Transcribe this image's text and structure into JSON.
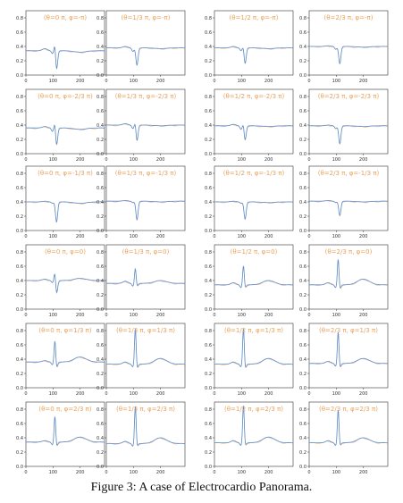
{
  "caption": "Figure 3: A case of Electrocardio Panorama.",
  "colors": {
    "signal": "#5b8fd4",
    "signal_overlay": "#e7a86a",
    "title": "#e8a25c",
    "axes": "#333333"
  },
  "chart_data": {
    "type": "line",
    "rows": 6,
    "cols": 4,
    "xlim": [
      0,
      290
    ],
    "x_ticks": [
      0,
      100,
      200
    ],
    "ylim": [
      0,
      0.9
    ],
    "y_ticks": [
      0.0,
      0.2,
      0.4,
      0.6,
      0.8
    ],
    "panels": [
      {
        "title": "(θ=0 π, φ=-π)",
        "base": 0.34,
        "p": 0.03,
        "q": 0.04,
        "r": 0.12,
        "s": -0.26,
        "t": -0.02
      },
      {
        "title": "(θ=1/3 π, φ=-π)",
        "base": 0.38,
        "p": 0.02,
        "q": 0.05,
        "r": 0.0,
        "s": -0.24,
        "t": -0.01
      },
      {
        "title": "(θ=1/2 π, φ=-π)",
        "base": 0.38,
        "p": 0.02,
        "q": 0.04,
        "r": 0.04,
        "s": -0.22,
        "t": -0.01
      },
      {
        "title": "(θ=2/3 π, φ=-π)",
        "base": 0.4,
        "p": 0.01,
        "q": 0.04,
        "r": 0.0,
        "s": -0.24,
        "t": -0.01
      },
      {
        "title": "(θ=0 π, φ=-2/3 π)",
        "base": 0.36,
        "p": 0.02,
        "q": 0.05,
        "r": 0.1,
        "s": -0.24,
        "t": -0.02
      },
      {
        "title": "(θ=1/3 π, φ=-2/3 π)",
        "base": 0.4,
        "p": 0.02,
        "q": 0.05,
        "r": 0.06,
        "s": -0.22,
        "t": -0.01
      },
      {
        "title": "(θ=1/2 π, φ=-2/3 π)",
        "base": 0.39,
        "p": 0.02,
        "q": 0.05,
        "r": 0.05,
        "s": -0.2,
        "t": -0.01
      },
      {
        "title": "(θ=2/3 π, φ=-2/3 π)",
        "base": 0.39,
        "p": 0.01,
        "q": 0.04,
        "r": 0.0,
        "s": -0.25,
        "t": -0.01
      },
      {
        "title": "(θ=0 π, φ=-1/3 π)",
        "base": 0.4,
        "p": 0.01,
        "q": 0.02,
        "r": 0.0,
        "s": -0.28,
        "t": -0.02
      },
      {
        "title": "(θ=1/3 π, φ=-1/3 π)",
        "base": 0.41,
        "p": 0.01,
        "q": 0.02,
        "r": 0.0,
        "s": -0.26,
        "t": -0.01
      },
      {
        "title": "(θ=1/2 π, φ=-1/3 π)",
        "base": 0.4,
        "p": 0.01,
        "q": 0.02,
        "r": 0.0,
        "s": -0.24,
        "t": -0.01
      },
      {
        "title": "(θ=2/3 π, φ=-1/3 π)",
        "base": 0.41,
        "p": 0.01,
        "q": 0.02,
        "r": 0.0,
        "s": -0.2,
        "t": -0.01
      },
      {
        "title": "(θ=0 π, φ=0)",
        "base": 0.4,
        "p": 0.02,
        "q": 0.03,
        "r": 0.14,
        "s": -0.18,
        "t": 0.03
      },
      {
        "title": "(θ=1/3 π, φ=0)",
        "base": 0.36,
        "p": 0.03,
        "q": 0.04,
        "r": 0.22,
        "s": -0.04,
        "t": 0.04
      },
      {
        "title": "(θ=1/2 π, φ=0)",
        "base": 0.34,
        "p": 0.03,
        "q": 0.04,
        "r": 0.28,
        "s": -0.04,
        "t": 0.06
      },
      {
        "title": "(θ=2/3 π, φ=0)",
        "base": 0.34,
        "p": 0.03,
        "q": 0.04,
        "r": 0.38,
        "s": -0.06,
        "t": 0.08
      },
      {
        "title": "(θ=0 π, φ=1/3 π)",
        "base": 0.36,
        "p": 0.02,
        "q": 0.04,
        "r": 0.32,
        "s": -0.08,
        "t": 0.07
      },
      {
        "title": "(θ=1/3 π, φ=1/3 π)",
        "base": 0.33,
        "p": 0.03,
        "q": 0.04,
        "r": 0.52,
        "s": -0.06,
        "t": 0.08
      },
      {
        "title": "(θ=1/2 π, φ=1/3 π)",
        "base": 0.33,
        "p": 0.03,
        "q": 0.04,
        "r": 0.52,
        "s": -0.06,
        "t": 0.08
      },
      {
        "title": "(θ=2/3 π, φ=1/3 π)",
        "base": 0.34,
        "p": 0.03,
        "q": 0.04,
        "r": 0.46,
        "s": -0.06,
        "t": 0.07
      },
      {
        "title": "(θ=0 π, φ=2/3 π)",
        "base": 0.34,
        "p": 0.02,
        "q": 0.04,
        "r": 0.38,
        "s": -0.06,
        "t": 0.07
      },
      {
        "title": "(θ=1/3 π, φ=2/3 π)",
        "base": 0.32,
        "p": 0.03,
        "q": 0.04,
        "r": 0.54,
        "s": -0.04,
        "t": 0.08
      },
      {
        "title": "(θ=1/2 π, φ=2/3 π)",
        "base": 0.33,
        "p": 0.03,
        "q": 0.04,
        "r": 0.54,
        "s": -0.04,
        "t": 0.08
      },
      {
        "title": "(θ=2/3 π, φ=2/3 π)",
        "base": 0.33,
        "p": 0.03,
        "q": 0.04,
        "r": 0.48,
        "s": -0.04,
        "t": 0.07
      }
    ]
  }
}
